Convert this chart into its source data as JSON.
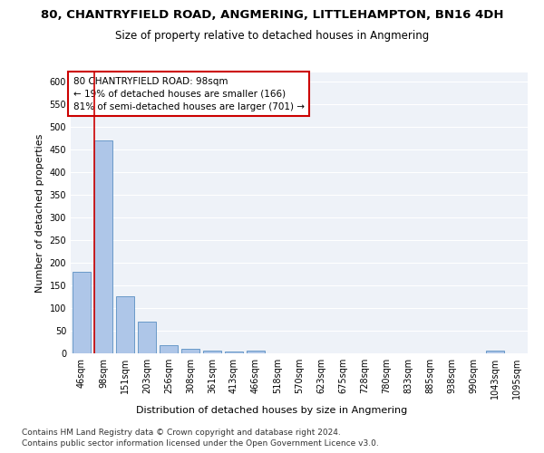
{
  "title1": "80, CHANTRYFIELD ROAD, ANGMERING, LITTLEHAMPTON, BN16 4DH",
  "title2": "Size of property relative to detached houses in Angmering",
  "xlabel": "Distribution of detached houses by size in Angmering",
  "ylabel": "Number of detached properties",
  "categories": [
    "46sqm",
    "98sqm",
    "151sqm",
    "203sqm",
    "256sqm",
    "308sqm",
    "361sqm",
    "413sqm",
    "466sqm",
    "518sqm",
    "570sqm",
    "623sqm",
    "675sqm",
    "728sqm",
    "780sqm",
    "833sqm",
    "885sqm",
    "938sqm",
    "990sqm",
    "1043sqm",
    "1095sqm"
  ],
  "values": [
    180,
    470,
    127,
    70,
    18,
    10,
    7,
    5,
    7,
    0,
    0,
    0,
    0,
    0,
    0,
    0,
    0,
    0,
    0,
    7,
    0
  ],
  "bar_color": "#aec6e8",
  "bar_edge_color": "#5a8fc2",
  "highlight_idx": 1,
  "highlight_color": "#cc0000",
  "ylim": [
    0,
    620
  ],
  "yticks": [
    0,
    50,
    100,
    150,
    200,
    250,
    300,
    350,
    400,
    450,
    500,
    550,
    600
  ],
  "annotation_line1": "80 CHANTRYFIELD ROAD: 98sqm",
  "annotation_line2": "← 19% of detached houses are smaller (166)",
  "annotation_line3": "81% of semi-detached houses are larger (701) →",
  "annotation_box_color": "#cc0000",
  "footer1": "Contains HM Land Registry data © Crown copyright and database right 2024.",
  "footer2": "Contains public sector information licensed under the Open Government Licence v3.0.",
  "title1_fontsize": 9.5,
  "title2_fontsize": 8.5,
  "xlabel_fontsize": 8,
  "ylabel_fontsize": 8,
  "tick_fontsize": 7,
  "footer_fontsize": 6.5,
  "annotation_fontsize": 7.5,
  "bg_color": "#eef2f8",
  "grid_color": "#ffffff"
}
